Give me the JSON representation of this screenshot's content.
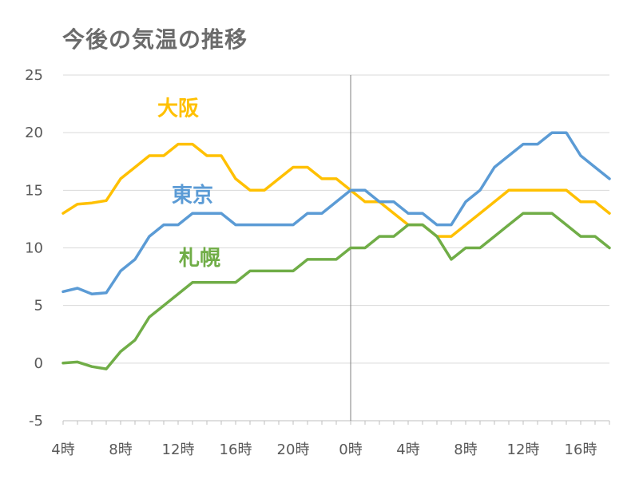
{
  "chart_data": {
    "type": "line",
    "title": "今後の気温の推移",
    "xlabel": "",
    "ylabel": "",
    "ylim": [
      -5,
      25
    ],
    "yticks": [
      -5,
      0,
      5,
      10,
      15,
      20,
      25
    ],
    "x_hours": [
      4,
      5,
      6,
      7,
      8,
      9,
      10,
      11,
      12,
      13,
      14,
      15,
      16,
      17,
      18,
      19,
      20,
      21,
      22,
      23,
      24,
      25,
      26,
      27,
      28,
      29,
      30,
      31,
      32,
      33,
      34,
      35,
      36,
      37,
      38,
      39,
      40,
      41,
      42
    ],
    "x_tick_labels": [
      {
        "hour": 4,
        "label": "4時"
      },
      {
        "hour": 8,
        "label": "8時"
      },
      {
        "hour": 12,
        "label": "12時"
      },
      {
        "hour": 16,
        "label": "16時"
      },
      {
        "hour": 20,
        "label": "20時"
      },
      {
        "hour": 24,
        "label": "0時"
      },
      {
        "hour": 28,
        "label": "4時"
      },
      {
        "hour": 32,
        "label": "8時"
      },
      {
        "hour": 36,
        "label": "12時"
      },
      {
        "hour": 40,
        "label": "16時"
      }
    ],
    "midnight_divider_hour": 24,
    "grid": true,
    "series": [
      {
        "name": "大阪",
        "color": "#ffc000",
        "values": [
          13,
          13.8,
          13.9,
          14.1,
          16,
          17,
          18,
          18,
          19,
          19,
          18,
          18,
          16,
          15,
          15,
          16,
          17,
          17,
          16,
          16,
          15,
          14,
          14,
          13,
          12,
          12,
          11,
          11,
          12,
          13,
          14,
          15,
          15,
          15,
          15,
          15,
          14,
          14,
          13
        ],
        "label_position": {
          "hour": 12,
          "value": 21.5
        }
      },
      {
        "name": "東京",
        "color": "#5b9bd5",
        "values": [
          6.2,
          6.5,
          6,
          6.1,
          8,
          9,
          11,
          12,
          12,
          13,
          13,
          13,
          12,
          12,
          12,
          12,
          12,
          13,
          13,
          14,
          15,
          15,
          14,
          14,
          13,
          13,
          12,
          12,
          14,
          15,
          17,
          18,
          19,
          19,
          20,
          20,
          18,
          17,
          16
        ],
        "label_position": {
          "hour": 13,
          "value": 14.0
        }
      },
      {
        "name": "札幌",
        "color": "#70ad47",
        "values": [
          0,
          0.1,
          -0.3,
          -0.5,
          1,
          2,
          4,
          5,
          6,
          7,
          7,
          7,
          7,
          8,
          8,
          8,
          8,
          9,
          9,
          9,
          10,
          10,
          11,
          11,
          12,
          12,
          11,
          9,
          10,
          10,
          11,
          12,
          13,
          13,
          13,
          12,
          11,
          11,
          10
        ],
        "label_position": {
          "hour": 13.5,
          "value": 8.5
        }
      }
    ]
  }
}
